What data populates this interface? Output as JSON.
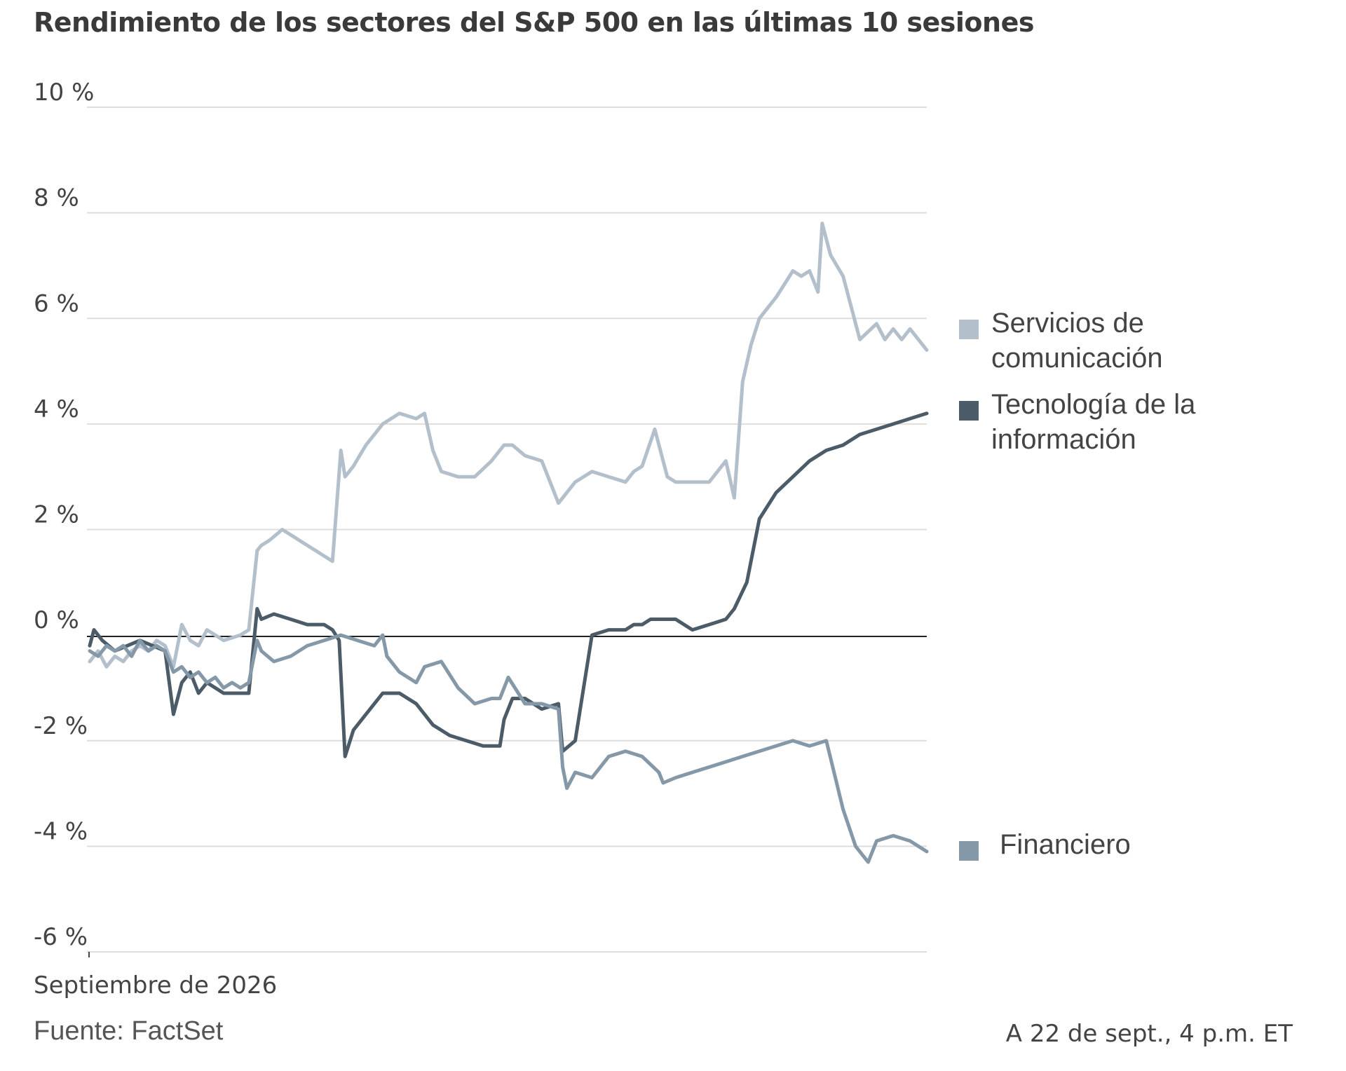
{
  "chart_data": {
    "type": "line",
    "title": "Rendimiento de los sectores del S&P 500 en las últimas 10 sesiones",
    "xlabel": "Septiembre de 2026",
    "ylabel": "",
    "ylim": [
      -6,
      10
    ],
    "yticks": [
      10,
      8,
      6,
      4,
      2,
      0,
      -2,
      -4,
      -6
    ],
    "ytick_labels": [
      "10 %",
      "8 %",
      "6 %",
      "4 %",
      "2 %",
      "0 %",
      "-2 %",
      "-4 %",
      "-6 %"
    ],
    "xlim": [
      0,
      10
    ],
    "grid": true,
    "legend_position": "right",
    "series": [
      {
        "name": "Servicios de comunicación",
        "color": "#b3c0cb",
        "x": [
          0,
          0.1,
          0.2,
          0.3,
          0.4,
          0.5,
          0.6,
          0.7,
          0.8,
          0.9,
          1.0,
          1.1,
          1.2,
          1.3,
          1.4,
          1.5,
          1.6,
          1.7,
          1.8,
          1.9,
          2.0,
          2.05,
          2.15,
          2.3,
          2.4,
          2.5,
          2.6,
          2.7,
          2.8,
          2.9,
          3.0,
          3.05,
          3.15,
          3.3,
          3.5,
          3.7,
          3.9,
          4.0,
          4.1,
          4.2,
          4.4,
          4.6,
          4.8,
          4.95,
          5.05,
          5.2,
          5.4,
          5.6,
          5.8,
          6.0,
          6.2,
          6.4,
          6.5,
          6.6,
          6.75,
          6.9,
          7.0,
          7.2,
          7.4,
          7.6,
          7.7,
          7.8,
          7.9,
          8.0,
          8.2,
          8.4,
          8.5,
          8.6,
          8.7,
          8.75,
          8.85,
          9.0,
          9.2,
          9.4,
          9.5,
          9.6,
          9.7,
          9.8,
          9.9,
          10.0
        ],
        "y": [
          -0.5,
          -0.3,
          -0.6,
          -0.4,
          -0.5,
          -0.3,
          -0.2,
          -0.3,
          -0.1,
          -0.2,
          -0.6,
          0.2,
          -0.1,
          -0.2,
          0.1,
          0.0,
          -0.1,
          -0.05,
          0.0,
          0.1,
          1.6,
          1.7,
          1.8,
          2.0,
          1.9,
          1.8,
          1.7,
          1.6,
          1.5,
          1.4,
          3.5,
          3.0,
          3.2,
          3.6,
          4.0,
          4.2,
          4.1,
          4.2,
          3.5,
          3.1,
          3.0,
          3.0,
          3.3,
          3.6,
          3.6,
          3.4,
          3.3,
          2.5,
          2.9,
          3.1,
          3.0,
          2.9,
          3.1,
          3.2,
          3.9,
          3.0,
          2.9,
          2.9,
          2.9,
          3.3,
          2.6,
          4.8,
          5.5,
          6.0,
          6.4,
          6.9,
          6.8,
          6.9,
          6.5,
          7.8,
          7.2,
          6.8,
          5.6,
          5.9,
          5.6,
          5.8,
          5.6,
          5.8,
          5.6,
          5.4
        ]
      },
      {
        "name": "Tecnología de la información",
        "color": "#4b5c68",
        "x": [
          0,
          0.05,
          0.15,
          0.3,
          0.45,
          0.6,
          0.75,
          0.9,
          1.0,
          1.1,
          1.2,
          1.3,
          1.4,
          1.5,
          1.6,
          1.7,
          1.8,
          1.9,
          2.0,
          2.05,
          2.2,
          2.4,
          2.6,
          2.8,
          2.9,
          2.98,
          3.05,
          3.15,
          3.3,
          3.5,
          3.7,
          3.9,
          4.0,
          4.1,
          4.3,
          4.5,
          4.7,
          4.9,
          4.95,
          5.05,
          5.2,
          5.3,
          5.4,
          5.6,
          5.65,
          5.8,
          6.0,
          6.2,
          6.4,
          6.5,
          6.6,
          6.7,
          6.85,
          7.0,
          7.2,
          7.4,
          7.6,
          7.7,
          7.85,
          8.0,
          8.2,
          8.4,
          8.6,
          8.8,
          9.0,
          9.2,
          9.4,
          9.6,
          9.8,
          10.0
        ],
        "y": [
          -0.2,
          0.1,
          -0.1,
          -0.3,
          -0.2,
          -0.1,
          -0.2,
          -0.3,
          -1.5,
          -0.9,
          -0.7,
          -1.1,
          -0.9,
          -1.0,
          -1.1,
          -1.1,
          -1.1,
          -1.1,
          0.5,
          0.3,
          0.4,
          0.3,
          0.2,
          0.2,
          0.1,
          -0.1,
          -2.3,
          -1.8,
          -1.5,
          -1.1,
          -1.1,
          -1.3,
          -1.5,
          -1.7,
          -1.9,
          -2.0,
          -2.1,
          -2.1,
          -1.6,
          -1.2,
          -1.2,
          -1.3,
          -1.4,
          -1.3,
          -2.2,
          -2.0,
          0.0,
          0.1,
          0.1,
          0.2,
          0.2,
          0.3,
          0.3,
          0.3,
          0.1,
          0.2,
          0.3,
          0.5,
          1.0,
          2.2,
          2.7,
          3.0,
          3.3,
          3.5,
          3.6,
          3.8,
          3.9,
          4.0,
          4.1,
          4.2
        ]
      },
      {
        "name": "Financiero",
        "color": "#8598a8",
        "x": [
          0,
          0.1,
          0.2,
          0.3,
          0.4,
          0.5,
          0.6,
          0.7,
          0.8,
          0.9,
          1.0,
          1.1,
          1.2,
          1.3,
          1.4,
          1.5,
          1.6,
          1.7,
          1.8,
          1.9,
          2.0,
          2.05,
          2.2,
          2.4,
          2.6,
          2.8,
          3.0,
          3.2,
          3.4,
          3.5,
          3.55,
          3.7,
          3.9,
          4.0,
          4.2,
          4.4,
          4.6,
          4.8,
          4.9,
          5.0,
          5.2,
          5.4,
          5.6,
          5.65,
          5.7,
          5.8,
          6.0,
          6.2,
          6.4,
          6.6,
          6.8,
          6.85,
          7.0,
          7.2,
          7.4,
          7.6,
          7.8,
          8.0,
          8.2,
          8.4,
          8.6,
          8.8,
          9.0,
          9.15,
          9.3,
          9.4,
          9.6,
          9.8,
          10.0
        ],
        "y": [
          -0.3,
          -0.4,
          -0.2,
          -0.3,
          -0.2,
          -0.4,
          -0.1,
          -0.3,
          -0.2,
          -0.3,
          -0.7,
          -0.6,
          -0.8,
          -0.7,
          -0.9,
          -0.8,
          -1.0,
          -0.9,
          -1.0,
          -0.9,
          -0.1,
          -0.3,
          -0.5,
          -0.4,
          -0.2,
          -0.1,
          0.0,
          -0.1,
          -0.2,
          0.0,
          -0.4,
          -0.7,
          -0.9,
          -0.6,
          -0.5,
          -1.0,
          -1.3,
          -1.2,
          -1.2,
          -0.8,
          -1.3,
          -1.3,
          -1.4,
          -2.5,
          -2.9,
          -2.6,
          -2.7,
          -2.3,
          -2.2,
          -2.3,
          -2.6,
          -2.8,
          -2.7,
          -2.6,
          -2.5,
          -2.4,
          -2.3,
          -2.2,
          -2.1,
          -2.0,
          -2.1,
          -2.0,
          -3.3,
          -4.0,
          -4.3,
          -3.9,
          -3.8,
          -3.9,
          -4.1
        ]
      }
    ]
  },
  "source_note": "Fuente: FactSet",
  "as_of_note": "A 22 de sept., 4 p.m. ET",
  "legend_lines": [
    [
      "Servicios de",
      "comunicación"
    ],
    [
      "Tecnología de la",
      "información"
    ],
    [
      "Financiero"
    ]
  ]
}
